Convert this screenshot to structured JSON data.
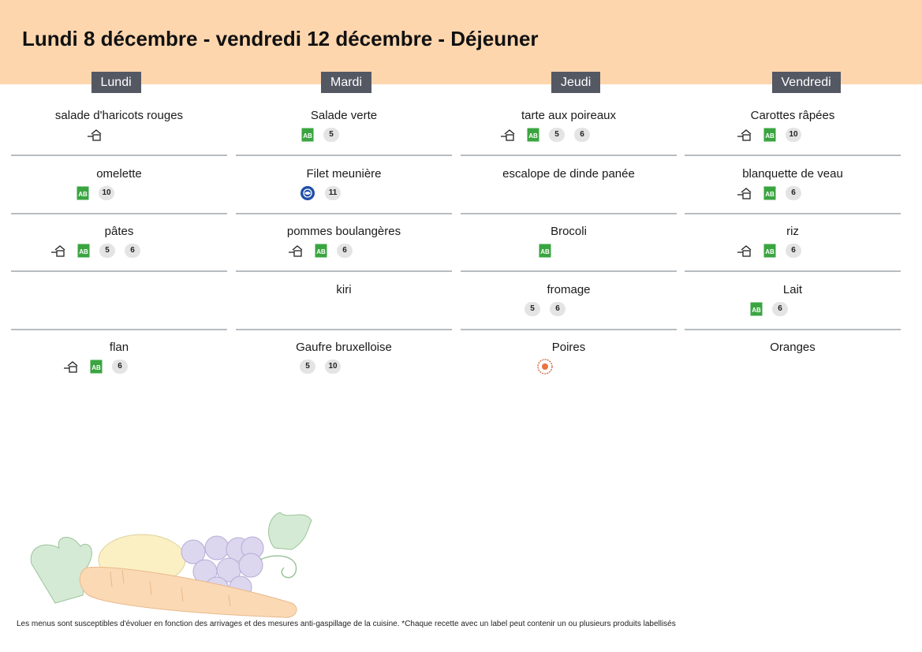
{
  "title": "Lundi 8 décembre - vendredi 12 décembre  - Déjeuner",
  "days": [
    {
      "name": "Lundi",
      "dishes": [
        {
          "name": "salade d'haricots rouges",
          "labels": [
            "fait-maison"
          ]
        },
        {
          "name": "omelette",
          "labels": [
            "bio",
            "10"
          ]
        },
        {
          "name": "pâtes",
          "labels": [
            "fait-maison",
            "bio",
            "5",
            "6"
          ]
        },
        {
          "name": "",
          "labels": []
        },
        {
          "name": "flan",
          "labels": [
            "fait-maison",
            "bio",
            "6"
          ]
        }
      ]
    },
    {
      "name": "Mardi",
      "dishes": [
        {
          "name": "Salade verte",
          "labels": [
            "bio",
            "5"
          ]
        },
        {
          "name": "Filet meunière",
          "labels": [
            "peche-durable",
            "11"
          ]
        },
        {
          "name": "pommes boulangères",
          "labels": [
            "fait-maison",
            "bio",
            "6"
          ]
        },
        {
          "name": "kiri",
          "labels": []
        },
        {
          "name": "Gaufre bruxelloise",
          "labels": [
            "5",
            "10"
          ]
        }
      ]
    },
    {
      "name": "Jeudi",
      "dishes": [
        {
          "name": "tarte aux poireaux",
          "labels": [
            "fait-maison",
            "bio",
            "5",
            "6"
          ]
        },
        {
          "name": "escalope de dinde panée",
          "labels": []
        },
        {
          "name": "Brocoli",
          "labels": [
            "bio"
          ]
        },
        {
          "name": "fromage",
          "labels": [
            "5",
            "6"
          ]
        },
        {
          "name": "Poires",
          "labels": [
            "local"
          ]
        }
      ]
    },
    {
      "name": "Vendredi",
      "dishes": [
        {
          "name": "Carottes râpées",
          "labels": [
            "fait-maison",
            "bio",
            "10"
          ]
        },
        {
          "name": "blanquette de veau",
          "labels": [
            "fait-maison",
            "bio",
            "6"
          ]
        },
        {
          "name": "riz",
          "labels": [
            "fait-maison",
            "bio",
            "6"
          ]
        },
        {
          "name": "Lait",
          "labels": [
            "bio",
            "6"
          ]
        },
        {
          "name": "Oranges",
          "labels": []
        }
      ]
    }
  ],
  "footer": "Les menus sont susceptibles d'évoluer en fonction des arrivages et des mesures anti-gaspillage de la cuisine. *Chaque recette avec un label peut contenir un ou plusieurs produits labellisés",
  "colors": {
    "header": "#fed6ae",
    "tab": "#545863",
    "bio": "#3aa540",
    "rule": "#b7bcc0"
  }
}
